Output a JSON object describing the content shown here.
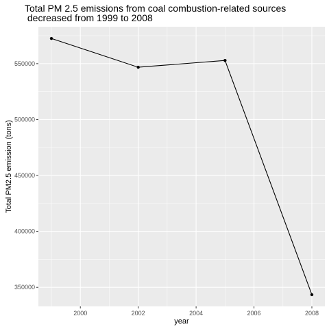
{
  "chart_data": {
    "type": "line",
    "title_lines": [
      "Total PM 2.5 emissions from coal combustion-related sources",
      " decreased from 1999 to 2008"
    ],
    "xlabel": "year",
    "ylabel": "Total PM2.5 emission (tons)",
    "x": [
      1999,
      2002,
      2005,
      2008
    ],
    "y": [
      572526,
      546789,
      552881,
      343432
    ],
    "xlim": [
      1998.55,
      2008.45
    ],
    "ylim": [
      332971,
      583017
    ],
    "x_ticks": [
      2000,
      2002,
      2004,
      2006,
      2008
    ],
    "x_tick_labels": [
      "2000",
      "2002",
      "2004",
      "2006",
      "2008"
    ],
    "y_ticks": [
      350000,
      400000,
      450000,
      500000,
      550000
    ],
    "y_tick_labels": [
      "350000",
      "400000",
      "450000",
      "500000",
      "550000"
    ],
    "grid": true,
    "colors": {
      "panel_background": "#ebebeb",
      "grid_major": "#ffffff",
      "line": "#000000",
      "point": "#000000",
      "tick_label": "#4d4d4d"
    }
  }
}
